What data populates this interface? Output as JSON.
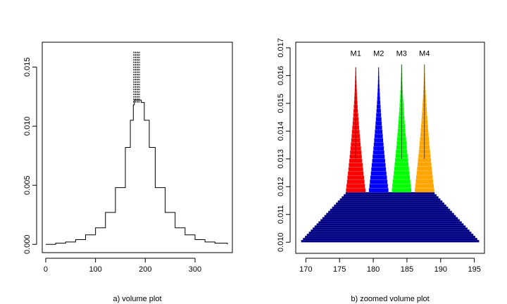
{
  "chart_data": [
    {
      "type": "line",
      "caption": "a) volume plot",
      "xlim": [
        -7,
        375
      ],
      "ylim": [
        -0.0007,
        0.0171
      ],
      "xticks": [
        0,
        100,
        200,
        300
      ],
      "yticks": [
        0.0,
        0.005,
        0.01,
        0.015
      ],
      "ytick_labels": [
        "0.000",
        "0.005",
        "0.010",
        "0.015"
      ],
      "grid": false,
      "profile": {
        "x": [
          0,
          20,
          40,
          60,
          80,
          100,
          120,
          140,
          160,
          170,
          176,
          178,
          184,
          190,
          192,
          198,
          208,
          220,
          240,
          260,
          280,
          300,
          320,
          340,
          365
        ],
        "y": [
          0.0,
          0.0001,
          0.0002,
          0.0004,
          0.0008,
          0.0014,
          0.0027,
          0.0048,
          0.0082,
          0.0105,
          0.0118,
          0.0122,
          0.0122,
          0.0122,
          0.012,
          0.0105,
          0.0082,
          0.0048,
          0.0027,
          0.0014,
          0.0008,
          0.0004,
          0.0002,
          0.0001,
          0.0
        ]
      },
      "spikes": {
        "x": [
          176.5,
          178.5,
          180.5,
          182.5,
          184.5,
          186.5,
          188.5
        ],
        "base": 0.012,
        "peak": 0.0163
      }
    },
    {
      "type": "area",
      "caption": "b) zoomed volume plot",
      "xlim": [
        168.5,
        196.5
      ],
      "ylim": [
        0.0096,
        0.0172
      ],
      "xticks": [
        170,
        175,
        180,
        185,
        190,
        195
      ],
      "yticks": [
        0.01,
        0.011,
        0.012,
        0.013,
        0.014,
        0.015,
        0.016,
        0.017
      ],
      "ytick_labels": [
        "0.010",
        "0.011",
        "0.012",
        "0.013",
        "0.014",
        "0.015",
        "0.016",
        "0.017"
      ],
      "grid": false,
      "base": {
        "color": "#000080",
        "y_bottom": 0.01,
        "y_top": 0.0118,
        "x_left_bottom": 169.3,
        "x_right_bottom": 195.7,
        "x_left_top": 176.2,
        "x_right_top": 188.8
      },
      "peaks": [
        {
          "label": "M1",
          "color": "#ff0000",
          "center": 177.4,
          "y_bottom": 0.0118,
          "y_top": 0.0163,
          "half_width_bottom": 1.4
        },
        {
          "label": "M2",
          "color": "#0000ff",
          "center": 180.8,
          "y_bottom": 0.0118,
          "y_top": 0.0163,
          "half_width_bottom": 1.4
        },
        {
          "label": "M3",
          "color": "#00ff00",
          "center": 184.2,
          "y_bottom": 0.0118,
          "y_top": 0.0164,
          "half_width_bottom": 1.4
        },
        {
          "label": "M4",
          "color": "#ffa500",
          "center": 187.6,
          "y_bottom": 0.0118,
          "y_top": 0.0164,
          "half_width_bottom": 1.4
        }
      ],
      "label_y": 0.0167
    }
  ]
}
